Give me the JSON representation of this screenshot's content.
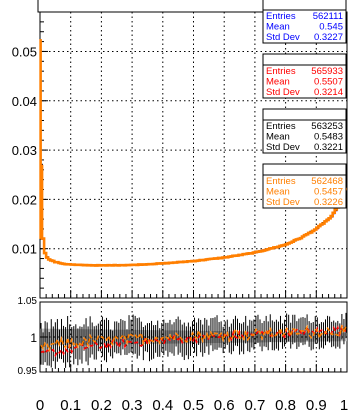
{
  "chart_data": [
    {
      "type": "histogram",
      "title": "",
      "xlabel": "",
      "ylabel": "",
      "xlim": [
        0,
        1
      ],
      "ylim": [
        0,
        0.058
      ],
      "grid": true,
      "yticks": [
        {
          "value": 0.01,
          "label": "0.01"
        },
        {
          "value": 0.02,
          "label": "0.02"
        },
        {
          "value": 0.03,
          "label": "0.03"
        },
        {
          "value": 0.04,
          "label": "0.04"
        },
        {
          "value": 0.05,
          "label": "0.05"
        }
      ],
      "curve": {
        "description_points_x": [
          0.0,
          0.003,
          0.006,
          0.01,
          0.015,
          0.02,
          0.03,
          0.05,
          0.08,
          0.12,
          0.2,
          0.3,
          0.4,
          0.5,
          0.6,
          0.7,
          0.8,
          0.85,
          0.9,
          0.95,
          0.98,
          1.0
        ],
        "description_points_y": [
          0.052,
          0.028,
          0.018,
          0.012,
          0.0095,
          0.0085,
          0.0078,
          0.0073,
          0.0069,
          0.0067,
          0.0066,
          0.0067,
          0.007,
          0.0075,
          0.0082,
          0.0092,
          0.0108,
          0.0122,
          0.014,
          0.0165,
          0.0195,
          0.0225
        ]
      },
      "series": [
        {
          "name": "",
          "color": "#0000ff"
        },
        {
          "name": "",
          "color": "#ff0000"
        },
        {
          "name": "",
          "color": "#000000"
        },
        {
          "name": "",
          "color": "#ff7f00"
        }
      ],
      "stat_boxes": [
        {
          "color": "#0000ff",
          "rows": [
            {
              "label": "Entries",
              "value": "562111"
            },
            {
              "label": "Mean",
              "value": "0.545"
            },
            {
              "label": "Std Dev",
              "value": "0.3227"
            }
          ]
        },
        {
          "color": "#ff0000",
          "rows": [
            {
              "label": "Entries",
              "value": "565933"
            },
            {
              "label": "Mean",
              "value": "0.5507"
            },
            {
              "label": "Std Dev",
              "value": "0.3214"
            }
          ]
        },
        {
          "color": "#000000",
          "rows": [
            {
              "label": "Entries",
              "value": "563253"
            },
            {
              "label": "Mean",
              "value": "0.5483"
            },
            {
              "label": "Std Dev",
              "value": "0.3221"
            }
          ]
        },
        {
          "color": "#ff7f00",
          "rows": [
            {
              "label": "Entries",
              "value": "562468"
            },
            {
              "label": "Mean",
              "value": "0.5457"
            },
            {
              "label": "Std Dev",
              "value": "0.3226"
            }
          ]
        }
      ]
    },
    {
      "type": "ratio",
      "title": "",
      "xlabel": "",
      "ylabel": "",
      "xlim": [
        0,
        1
      ],
      "ylim": [
        0.95,
        1.05
      ],
      "grid": true,
      "yticks": [
        {
          "value": 0.95,
          "label": "0.95"
        },
        {
          "value": 1.0,
          "label": "1"
        },
        {
          "value": 1.05,
          "label": "1.05"
        }
      ],
      "xticks": [
        {
          "value": 0,
          "label": "0"
        },
        {
          "value": 0.1,
          "label": "0.1"
        },
        {
          "value": 0.2,
          "label": "0.2"
        },
        {
          "value": 0.3,
          "label": "0.3"
        },
        {
          "value": 0.4,
          "label": "0.4"
        },
        {
          "value": 0.5,
          "label": "0.5"
        },
        {
          "value": 0.6,
          "label": "0.6"
        },
        {
          "value": 0.7,
          "label": "0.7"
        },
        {
          "value": 0.8,
          "label": "0.8"
        },
        {
          "value": 0.9,
          "label": "0.9"
        },
        {
          "value": 1,
          "label": "1"
        }
      ],
      "series_colors": {
        "band": "#bdbdbd",
        "errors": "#000000",
        "red": "#ff0000",
        "orange": "#ff7f00"
      }
    }
  ]
}
